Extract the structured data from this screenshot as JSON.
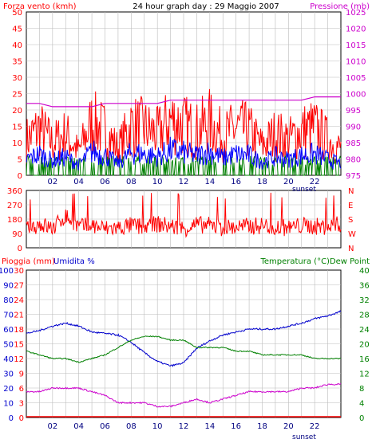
{
  "header": {
    "title": "24 hour graph day : 29 Maggio 2007",
    "left_label": "Forza vento (kmh)",
    "right_label": "Pressione (mb)"
  },
  "colors": {
    "wind": "#ff0000",
    "gust": "#0000ff",
    "calm": "#008000",
    "pressure": "#cc00cc",
    "direction": "#ff0000",
    "humidity": "#0000cc",
    "temperature": "#008000",
    "dewpoint": "#cc00cc",
    "rain": "#ff0000",
    "grid": "#bbbbbb",
    "axis_text_red": "#ff0000",
    "axis_text_blue": "#0000cc",
    "axis_text_green": "#008000",
    "axis_text_magenta": "#cc00cc"
  },
  "x_axis": {
    "ticks": [
      "02",
      "04",
      "06",
      "08",
      "10",
      "12",
      "14",
      "16",
      "18",
      "20",
      "22"
    ],
    "sunset_label": "sunset"
  },
  "chart_data": [
    {
      "type": "line",
      "panel": "wind",
      "title": "",
      "y_left": {
        "label": "Forza vento (kmh)",
        "ticks": [
          "0",
          "5",
          "10",
          "15",
          "20",
          "25",
          "30",
          "35",
          "40",
          "45",
          "50"
        ],
        "ylim": [
          0,
          50
        ]
      },
      "y_right": {
        "label": "Pressione (mb)",
        "ticks": [
          "975",
          "980",
          "985",
          "990",
          "995",
          "1000",
          "1005",
          "1010",
          "1015",
          "1020",
          "1025"
        ],
        "ylim": [
          975,
          1025
        ]
      },
      "x_hours": [
        0,
        1,
        2,
        3,
        4,
        5,
        6,
        7,
        8,
        9,
        10,
        11,
        12,
        13,
        14,
        15,
        16,
        17,
        18,
        19,
        20,
        21,
        22,
        23,
        24
      ],
      "series": [
        {
          "name": "Forza vento (kmh)",
          "values": [
            12,
            16,
            11,
            14,
            8,
            18,
            15,
            9,
            17,
            16,
            14,
            19,
            17,
            15,
            18,
            13,
            16,
            15,
            10,
            14,
            12,
            15,
            16,
            12,
            9
          ]
        },
        {
          "name": "Pressione (mb)",
          "values": [
            997,
            997,
            996,
            996,
            996,
            996,
            997,
            997,
            997,
            997,
            997,
            998,
            998,
            998,
            998,
            998,
            998,
            998,
            998,
            998,
            998,
            998,
            999,
            999,
            999
          ]
        }
      ]
    },
    {
      "type": "line",
      "panel": "direction",
      "y_left": {
        "ticks": [
          "0",
          "90",
          "180",
          "270",
          "360"
        ],
        "ylim": [
          0,
          360
        ]
      },
      "y_right": {
        "ticks": [
          "N",
          "E",
          "S",
          "W",
          "N"
        ]
      },
      "x_hours": [
        0,
        1,
        2,
        3,
        4,
        5,
        6,
        7,
        8,
        9,
        10,
        11,
        12,
        13,
        14,
        15,
        16,
        17,
        18,
        19,
        20,
        21,
        22,
        23,
        24
      ],
      "series": [
        {
          "name": "direction",
          "values": [
            110,
            150,
            120,
            200,
            130,
            140,
            120,
            125,
            140,
            130,
            150,
            135,
            120,
            145,
            140,
            125,
            130,
            135,
            140,
            130,
            125,
            140,
            135,
            130,
            150
          ]
        }
      ]
    },
    {
      "type": "line",
      "panel": "humidity",
      "y_left_1": {
        "label": "Pioggia (mm)",
        "ticks": [
          "0",
          "3",
          "6",
          "9",
          "12",
          "15",
          "18",
          "21",
          "24",
          "27",
          "30"
        ],
        "ylim": [
          0,
          30
        ]
      },
      "y_left_2": {
        "label": "Umidita %",
        "ticks": [
          "0",
          "10",
          "20",
          "30",
          "40",
          "50",
          "60",
          "70",
          "80",
          "90",
          "100"
        ],
        "ylim": [
          0,
          100
        ]
      },
      "y_right": {
        "label": "Temperatura (°C)Dew Point",
        "ticks": [
          "0",
          "4",
          "8",
          "12",
          "16",
          "20",
          "24",
          "28",
          "32",
          "36",
          "40"
        ],
        "ylim": [
          0,
          40
        ]
      },
      "x_hours": [
        0,
        1,
        2,
        3,
        4,
        5,
        6,
        7,
        8,
        9,
        10,
        11,
        12,
        13,
        14,
        15,
        16,
        17,
        18,
        19,
        20,
        21,
        22,
        23,
        24
      ],
      "series": [
        {
          "name": "Umidita %",
          "values": [
            57,
            59,
            62,
            64,
            62,
            58,
            57,
            56,
            51,
            44,
            38,
            35,
            37,
            47,
            52,
            56,
            58,
            60,
            60,
            60,
            62,
            64,
            67,
            69,
            72
          ]
        },
        {
          "name": "Temperatura (°C)",
          "values": [
            18,
            17,
            16,
            16,
            15,
            16,
            17,
            19,
            21,
            22,
            22,
            21,
            21,
            19,
            19,
            19,
            18,
            18,
            17,
            17,
            17,
            17,
            16,
            16,
            16
          ]
        },
        {
          "name": "Dew Point",
          "values": [
            7,
            7,
            8,
            8,
            8,
            7,
            6,
            4,
            4,
            4,
            3,
            3,
            4,
            5,
            4,
            5,
            6,
            7,
            7,
            7,
            7,
            8,
            8,
            9,
            9
          ]
        },
        {
          "name": "Pioggia (mm)",
          "values": [
            0,
            0,
            0,
            0,
            0,
            0,
            0,
            0,
            0,
            0,
            0,
            0,
            0,
            0,
            0,
            0,
            0,
            0,
            0,
            0,
            0,
            0,
            0,
            0,
            0
          ]
        }
      ]
    }
  ]
}
